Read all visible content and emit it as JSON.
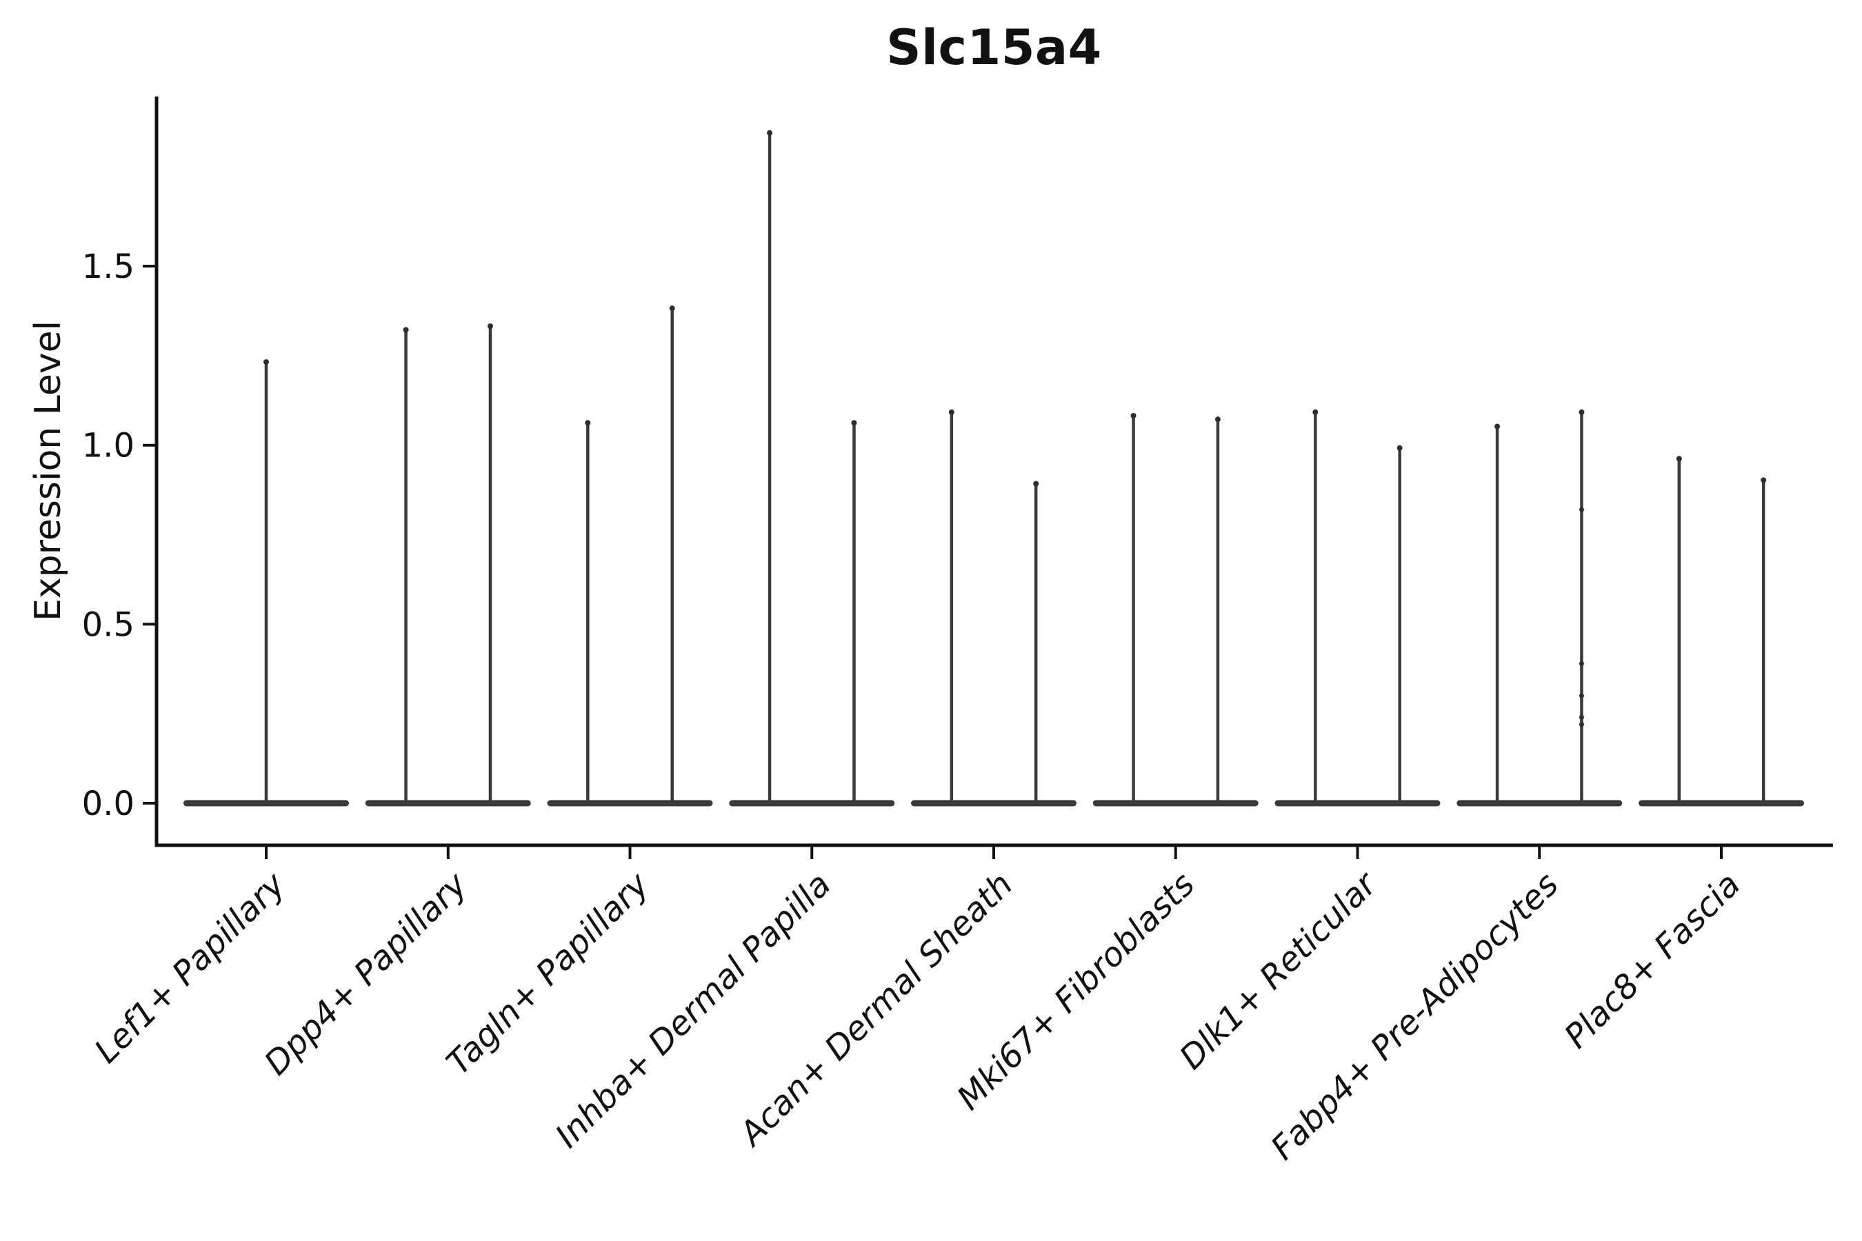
{
  "chart_data": {
    "type": "violin",
    "title": "Slc15a4",
    "ylabel": "Expression Level",
    "xlabel": "",
    "ytick_values": [
      0.0,
      0.5,
      1.0,
      1.5
    ],
    "ytick_labels": [
      "0.0",
      "0.5",
      "1.0",
      "1.5"
    ],
    "ylim": [
      -0.12,
      1.97
    ],
    "grid": false,
    "legend": null,
    "categories": [
      "Lef1+ Papillary",
      "Dpp4+ Papillary",
      "Tagln+ Papillary",
      "Inhba+ Dermal Papilla",
      "Acan+ Dermal Sheath",
      "Mki67+ Fibroblasts",
      "Dlk1+ Reticular",
      "Fabp4+ Pre-Adipocytes",
      "Plac8+ Fascia"
    ],
    "groups": [
      {
        "category": "Lef1+ Papillary",
        "violins": [
          {
            "offset": 0.0,
            "max": 1.24,
            "points": []
          }
        ]
      },
      {
        "category": "Dpp4+ Papillary",
        "violins": [
          {
            "offset": -0.232,
            "max": 1.33,
            "points": []
          },
          {
            "offset": 0.232,
            "max": 1.34,
            "points": []
          }
        ]
      },
      {
        "category": "Tagln+ Papillary",
        "violins": [
          {
            "offset": -0.232,
            "max": 1.07,
            "points": []
          },
          {
            "offset": 0.232,
            "max": 1.39,
            "points": []
          }
        ]
      },
      {
        "category": "Inhba+ Dermal Papilla",
        "violins": [
          {
            "offset": -0.232,
            "max": 1.88,
            "points": []
          },
          {
            "offset": 0.232,
            "max": 1.07,
            "points": []
          }
        ]
      },
      {
        "category": "Acan+ Dermal Sheath",
        "violins": [
          {
            "offset": -0.232,
            "max": 1.1,
            "points": []
          },
          {
            "offset": 0.232,
            "max": 0.9,
            "points": []
          }
        ]
      },
      {
        "category": "Mki67+ Fibroblasts",
        "violins": [
          {
            "offset": -0.232,
            "max": 1.09,
            "points": []
          },
          {
            "offset": 0.232,
            "max": 1.08,
            "points": []
          }
        ]
      },
      {
        "category": "Dlk1+ Reticular",
        "violins": [
          {
            "offset": -0.232,
            "max": 1.1,
            "points": []
          },
          {
            "offset": 0.232,
            "max": 1.0,
            "points": []
          }
        ]
      },
      {
        "category": "Fabp4+ Pre-Adipocytes",
        "violins": [
          {
            "offset": -0.232,
            "max": 1.06,
            "points": []
          },
          {
            "offset": 0.232,
            "max": 1.1,
            "points": [
              0.82,
              0.39,
              0.3,
              0.24,
              0.22
            ]
          }
        ]
      },
      {
        "category": "Plac8+ Fascia",
        "violins": [
          {
            "offset": -0.232,
            "max": 0.97,
            "points": []
          },
          {
            "offset": 0.232,
            "max": 0.91,
            "points": []
          }
        ]
      }
    ],
    "style": {
      "violin_color": "#3a3a3a",
      "point_color": "#2d2d2d",
      "axis_color": "#111111",
      "text_color": "#111111",
      "background": "#ffffff"
    }
  }
}
